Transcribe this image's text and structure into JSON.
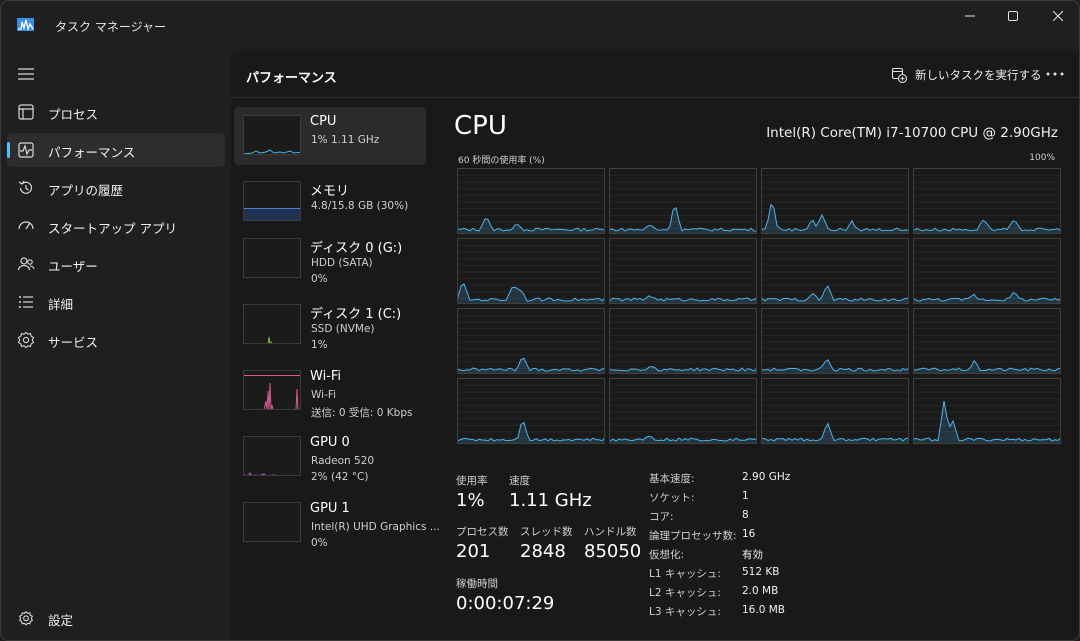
{
  "window": {
    "title": "タスク マネージャー"
  },
  "sidebar": {
    "items": [
      {
        "label": "プロセス",
        "icon": "processes-icon"
      },
      {
        "label": "パフォーマンス",
        "icon": "performance-icon",
        "active": true
      },
      {
        "label": "アプリの履歴",
        "icon": "app-history-icon"
      },
      {
        "label": "スタートアップ アプリ",
        "icon": "startup-icon"
      },
      {
        "label": "ユーザー",
        "icon": "users-icon"
      },
      {
        "label": "詳細",
        "icon": "details-icon"
      },
      {
        "label": "サービス",
        "icon": "services-icon"
      }
    ],
    "settings_label": "設定"
  },
  "toolbar": {
    "title": "パフォーマンス",
    "run_task_label": "新しいタスクを実行する"
  },
  "devices": [
    {
      "name": "CPU",
      "sub1": "1%  1.11 GHz",
      "sub2": "",
      "color": "#4fb3e8"
    },
    {
      "name": "メモリ",
      "sub1": "4.8/15.8 GB (30%)",
      "sub2": "",
      "color": "#4a7fd1"
    },
    {
      "name": "ディスク 0 (G:)",
      "sub1": "HDD (SATA)",
      "sub2": "0%",
      "color": "#6dbf3c"
    },
    {
      "name": "ディスク 1 (C:)",
      "sub1": "SSD (NVMe)",
      "sub2": "1%",
      "color": "#6dbf3c"
    },
    {
      "name": "Wi-Fi",
      "sub1": "Wi-Fi",
      "sub2": "送信: 0 受信: 0 Kbps",
      "color": "#d65a8f"
    },
    {
      "name": "GPU 0",
      "sub1": "Radeon 520",
      "sub2": "2%  (42 °C)",
      "color": "#b45bd1"
    },
    {
      "name": "GPU 1",
      "sub1": "Intel(R) UHD Graphics ...",
      "sub2": "0%",
      "color": "#b45bd1"
    }
  ],
  "detail": {
    "title": "CPU",
    "model": "Intel(R) Core(TM) i7-10700 CPU @ 2.90GHz",
    "graph_label": "60 秒間の使用率 (%)",
    "graph_max": "100%",
    "graph_color": "#4fb3e8",
    "stats": {
      "usage_label": "使用率",
      "usage_value": "1%",
      "speed_label": "速度",
      "speed_value": "1.11 GHz",
      "processes_label": "プロセス数",
      "processes_value": "201",
      "threads_label": "スレッド数",
      "threads_value": "2848",
      "handles_label": "ハンドル数",
      "handles_value": "85050",
      "uptime_label": "稼働時間",
      "uptime_value": "0:00:07:29"
    },
    "specs": [
      {
        "label": "基本速度:",
        "value": "2.90 GHz"
      },
      {
        "label": "ソケット:",
        "value": "1"
      },
      {
        "label": "コア:",
        "value": "8"
      },
      {
        "label": "論理プロセッサ数:",
        "value": "16"
      },
      {
        "label": "仮想化:",
        "value": "有効"
      },
      {
        "label": "L1 キャッシュ:",
        "value": "512 KB"
      },
      {
        "label": "L2 キャッシュ:",
        "value": "2.0 MB"
      },
      {
        "label": "L3 キャッシュ:",
        "value": "16.0 MB"
      }
    ]
  }
}
